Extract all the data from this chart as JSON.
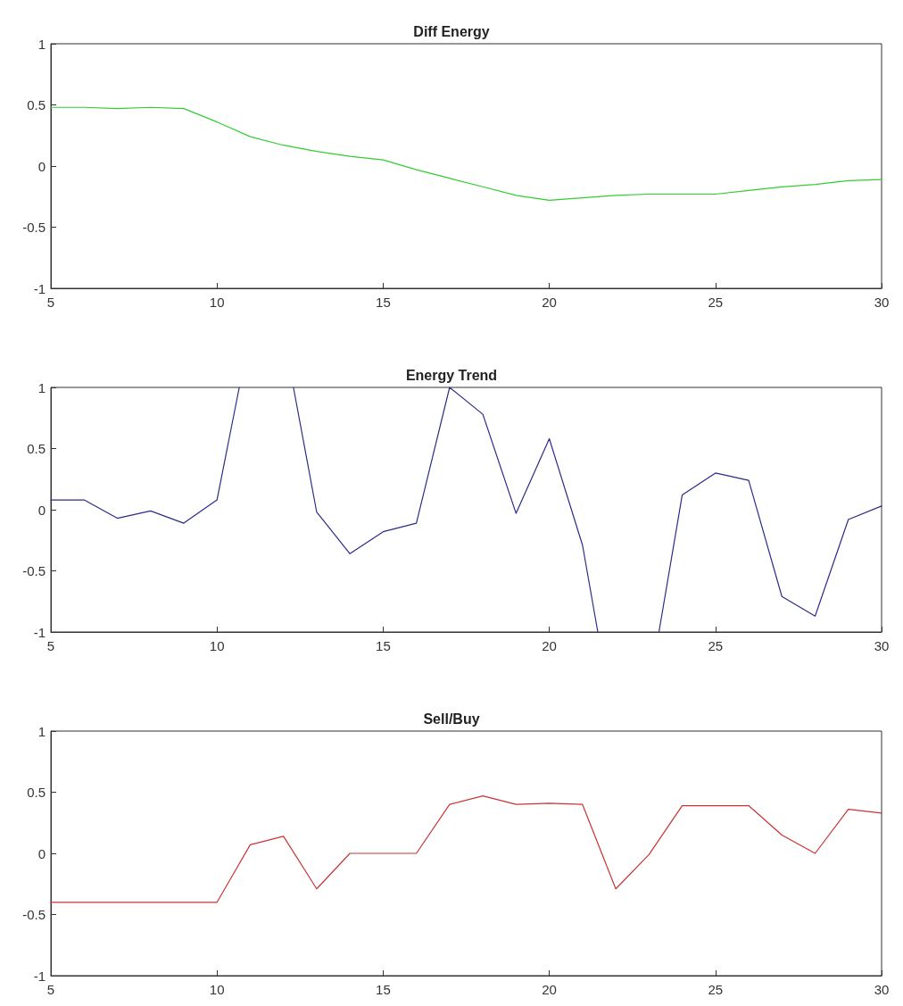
{
  "chart_data": [
    {
      "type": "line",
      "title": "Diff Energy",
      "x": [
        5,
        6,
        7,
        8,
        9,
        10,
        11,
        12,
        13,
        14,
        15,
        16,
        17,
        18,
        19,
        20,
        21,
        22,
        23,
        24,
        25,
        26,
        27,
        28,
        29,
        30
      ],
      "series": [
        {
          "color": "#33cc33",
          "values": [
            0.48,
            0.48,
            0.47,
            0.48,
            0.47,
            0.36,
            0.24,
            0.17,
            0.12,
            0.08,
            0.05,
            -0.03,
            -0.1,
            -0.17,
            -0.24,
            -0.28,
            -0.26,
            -0.24,
            -0.23,
            -0.23,
            -0.23,
            -0.2,
            -0.17,
            -0.15,
            -0.12,
            -0.11
          ]
        }
      ],
      "xlim": [
        5,
        30
      ],
      "xticks": [
        5,
        10,
        15,
        20,
        25,
        30
      ],
      "ylim": [
        -1,
        1
      ],
      "yticks": [
        -1,
        -0.5,
        0,
        0.5,
        1
      ]
    },
    {
      "type": "line",
      "title": "Energy Trend",
      "series": [
        {
          "color": "#2b2b8a",
          "x": [
            5,
            6,
            7,
            8,
            9,
            10,
            10.67,
            11.5,
            12.3,
            13,
            14,
            15,
            16,
            17,
            18,
            19,
            20,
            21,
            21.46,
            22.4,
            23.3,
            24,
            25,
            26,
            27,
            28,
            29,
            30
          ],
          "values": [
            0.08,
            0.08,
            -0.07,
            -0.01,
            -0.11,
            0.08,
            1,
            null,
            1,
            -0.02,
            -0.36,
            -0.18,
            -0.11,
            1,
            0.78,
            -0.03,
            0.58,
            -0.29,
            -1,
            null,
            -1,
            0.12,
            0.3,
            0.24,
            -0.71,
            -0.87,
            -0.08,
            0.03
          ]
        }
      ],
      "xlim": [
        5,
        30
      ],
      "xticks": [
        5,
        10,
        15,
        20,
        25,
        30
      ],
      "ylim": [
        -1,
        1
      ],
      "yticks": [
        -1,
        -0.5,
        0,
        0.5,
        1
      ]
    },
    {
      "type": "line",
      "title": "Sell/Buy",
      "x": [
        5,
        6,
        7,
        8,
        9,
        10,
        11,
        12,
        13,
        14,
        15,
        16,
        17,
        18,
        19,
        20,
        21,
        22,
        23,
        24,
        25,
        26,
        27,
        28,
        29,
        30
      ],
      "series": [
        {
          "color": "#cc3333",
          "values": [
            -0.4,
            -0.4,
            -0.4,
            -0.4,
            -0.4,
            -0.4,
            0.07,
            0.14,
            -0.29,
            0,
            0,
            0,
            0.4,
            0.47,
            0.4,
            0.41,
            0.4,
            -0.29,
            -0.01,
            0.39,
            0.39,
            0.39,
            0.15,
            0,
            0.36,
            0.33
          ]
        }
      ],
      "xlim": [
        5,
        30
      ],
      "xticks": [
        5,
        10,
        15,
        20,
        25,
        30
      ],
      "ylim": [
        -1,
        1
      ],
      "yticks": [
        -1,
        -0.5,
        0,
        0.5,
        1
      ]
    }
  ]
}
